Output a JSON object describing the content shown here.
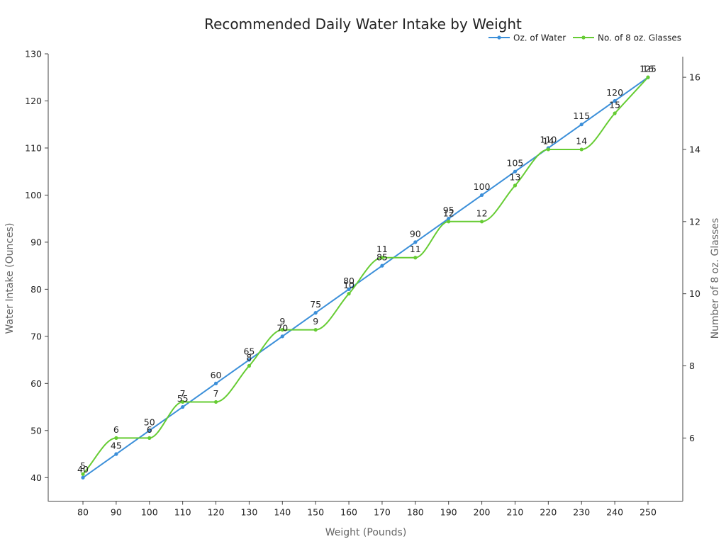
{
  "chart_data": {
    "type": "line",
    "title": "Recommended Daily Water Intake by Weight",
    "xlabel": "Weight (Pounds)",
    "ylabel": "Water Intake (Ounces)",
    "y2label": "Number of 8 oz. Glasses",
    "categories": [
      80,
      90,
      100,
      110,
      120,
      130,
      140,
      150,
      160,
      170,
      180,
      190,
      200,
      210,
      220,
      230,
      240,
      250
    ],
    "x_tick_labels": [
      "80",
      "90",
      "100",
      "110",
      "120",
      "130",
      "140",
      "150",
      "160",
      "170",
      "180",
      "190",
      "200",
      "210",
      "220",
      "230",
      "240",
      "250"
    ],
    "ylim": [
      35,
      130
    ],
    "y_ticks": [
      40,
      50,
      60,
      70,
      80,
      90,
      100,
      110,
      120,
      130
    ],
    "y_tick_labels": [
      "40",
      "50",
      "60",
      "70",
      "80",
      "90",
      "100",
      "110",
      "120",
      "130"
    ],
    "y2lim": [
      4.25,
      16.65
    ],
    "y2_ticks": [
      6,
      8,
      10,
      12,
      14,
      16
    ],
    "y2_tick_labels": [
      "6",
      "8",
      "10",
      "12",
      "14",
      "16"
    ],
    "legend_position": "top-right",
    "grid": false,
    "series": [
      {
        "name": "Oz. of Water",
        "axis": "left",
        "color": "#3b8fd9",
        "smooth": false,
        "values": [
          40,
          45,
          50,
          55,
          60,
          65,
          70,
          75,
          80,
          85,
          90,
          95,
          100,
          105,
          110,
          115,
          120,
          125
        ],
        "labels": [
          "40",
          "45",
          "50",
          "55",
          "60",
          "65",
          "70",
          "75",
          "80",
          "85",
          "90",
          "95",
          "100",
          "105",
          "110",
          "115",
          "120",
          "125"
        ]
      },
      {
        "name": "No. of 8 oz. Glasses",
        "axis": "right",
        "color": "#66cc33",
        "smooth": true,
        "values": [
          5,
          6,
          6,
          7,
          7,
          8,
          9,
          9,
          10,
          11,
          11,
          12,
          12,
          13,
          14,
          14,
          15,
          16
        ],
        "labels": [
          "5",
          "6",
          "6",
          "7",
          "7",
          "8",
          "9",
          "9",
          "10",
          "11",
          "11",
          "12",
          "12",
          "13",
          "14",
          "14",
          "15",
          "16"
        ]
      }
    ]
  }
}
